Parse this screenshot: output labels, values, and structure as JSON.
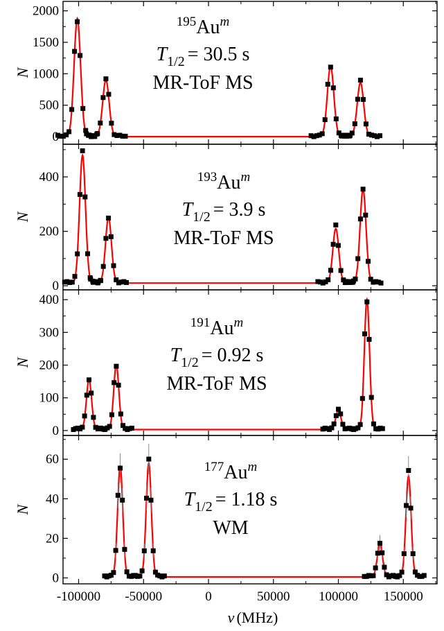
{
  "x_axis": {
    "label_symbol": "ν",
    "label_unit": "(MHz)",
    "ticks": [
      -100000,
      -50000,
      0,
      50000,
      100000,
      150000
    ],
    "tick_labels": [
      "-100000",
      "-50000",
      "0",
      "50000",
      "100000",
      "150000"
    ]
  },
  "colors": {
    "fit": "#ff0000",
    "points": "#000000",
    "errorbar": "#8a8a8a"
  },
  "chart_data": [
    {
      "type": "scatter",
      "ylabel": "N",
      "ylim": [
        -120,
        2150
      ],
      "yticks": [
        0,
        500,
        1000,
        1500,
        2000
      ],
      "annotation": {
        "mass": "195",
        "element": "Au",
        "state": "m",
        "halflife_sym": "T",
        "halflife_sub": "1/2",
        "halflife_val": "= 30.5 s",
        "method": "MR-ToF MS"
      },
      "baseline": 0,
      "peaks": [
        {
          "center": -101000,
          "height": 1880,
          "sigma": 2500
        },
        {
          "center": -79000,
          "height": 900,
          "sigma": 2500
        },
        {
          "center": 94000,
          "height": 1120,
          "sigma": 2500
        },
        {
          "center": 117000,
          "height": 860,
          "sigma": 2500
        }
      ]
    },
    {
      "type": "scatter",
      "ylabel": "N",
      "ylim": [
        -15,
        520
      ],
      "yticks": [
        0,
        200,
        400
      ],
      "annotation": {
        "mass": "193",
        "element": "Au",
        "state": "m",
        "halflife_sym": "T",
        "halflife_sub": "1/2",
        "halflife_val": "= 3.9 s",
        "method": "MR-ToF MS"
      },
      "baseline": 10,
      "peaks": [
        {
          "center": -97000,
          "height": 470,
          "sigma": 2300
        },
        {
          "center": -77000,
          "height": 240,
          "sigma": 2300
        },
        {
          "center": 98000,
          "height": 200,
          "sigma": 2300
        },
        {
          "center": 119000,
          "height": 345,
          "sigma": 2300
        }
      ]
    },
    {
      "type": "scatter",
      "ylabel": "N",
      "ylim": [
        -15,
        430
      ],
      "yticks": [
        0,
        100,
        200,
        300,
        400
      ],
      "annotation": {
        "mass": "191",
        "element": "Au",
        "state": "m",
        "halflife_sym": "T",
        "halflife_sub": "1/2",
        "halflife_val": "= 0.92 s",
        "method": "MR-ToF MS"
      },
      "baseline": 3,
      "peaks": [
        {
          "center": -92000,
          "height": 152,
          "sigma": 2000
        },
        {
          "center": -71000,
          "height": 197,
          "sigma": 2000
        },
        {
          "center": 100000,
          "height": 60,
          "sigma": 2000
        },
        {
          "center": 122000,
          "height": 398,
          "sigma": 2000
        }
      ]
    },
    {
      "type": "scatter",
      "ylabel": "N",
      "ylim": [
        -3,
        72
      ],
      "yticks": [
        0,
        20,
        40,
        60
      ],
      "annotation": {
        "mass": "177",
        "element": "Au",
        "state": "m",
        "halflife_sym": "T",
        "halflife_sub": "1/2",
        "halflife_val": "= 1.18 s",
        "method": "WM"
      },
      "baseline": 0.5,
      "peaks": [
        {
          "center": -68000,
          "height": 56,
          "sigma": 2000
        },
        {
          "center": -46000,
          "height": 57.5,
          "sigma": 2000
        },
        {
          "center": 132000,
          "height": 17,
          "sigma": 2000
        },
        {
          "center": 154000,
          "height": 51,
          "sigma": 2000
        }
      ]
    }
  ]
}
